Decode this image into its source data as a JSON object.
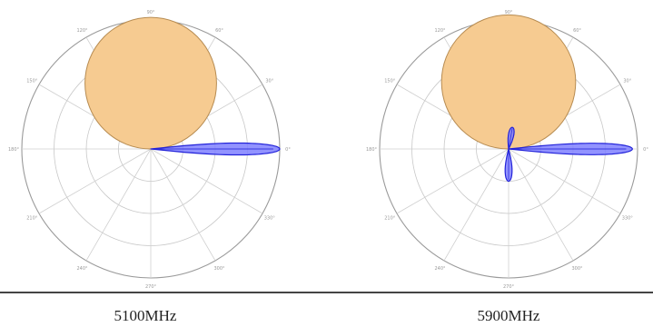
{
  "chart_data": [
    {
      "type": "polar",
      "caption": "5100MHz",
      "angle_ticks_deg": [
        0,
        30,
        60,
        90,
        120,
        150,
        180,
        210,
        240,
        270,
        300,
        330
      ],
      "rings": 4,
      "series": [
        {
          "shape": "circle",
          "fill": "#f6cb91",
          "stroke": "#b78c52",
          "center_angle_deg": 90,
          "offset": 0.51,
          "radius": 0.51
        },
        {
          "shape": "lobe",
          "fill": "#7f80ff",
          "stroke": "#2323d9",
          "direction_deg": 0,
          "length": 1.0,
          "width_deg": 6
        }
      ]
    },
    {
      "type": "polar",
      "caption": "5900MHz",
      "angle_ticks_deg": [
        0,
        30,
        60,
        90,
        120,
        150,
        180,
        210,
        240,
        270,
        300,
        330
      ],
      "rings": 4,
      "series": [
        {
          "shape": "circle",
          "fill": "#f6cb91",
          "stroke": "#b78c52",
          "center_angle_deg": 90,
          "offset": 0.52,
          "radius": 0.52
        },
        {
          "shape": "lobe",
          "fill": "#7f80ff",
          "stroke": "#2323d9",
          "direction_deg": 0,
          "length": 0.96,
          "width_deg": 6
        },
        {
          "shape": "lobe",
          "fill": "#7f80ff",
          "stroke": "#2323d9",
          "direction_deg": 270,
          "length": 0.25,
          "width_deg": 14
        },
        {
          "shape": "lobe",
          "fill": "#7f80ff",
          "stroke": "#2323d9",
          "direction_deg": 80,
          "length": 0.17,
          "width_deg": 16
        }
      ]
    }
  ],
  "captions": [
    "5100MHz",
    "5900MHz"
  ]
}
